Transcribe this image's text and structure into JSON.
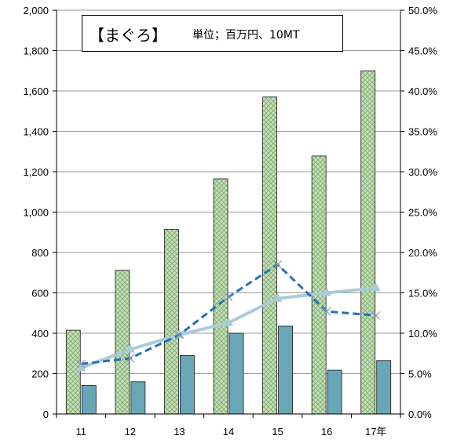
{
  "chart_data": {
    "type": "bar",
    "title": "【まぐろ】",
    "subtitle": "単位；百万円、10MT",
    "categories": [
      "11",
      "12",
      "13",
      "14",
      "15",
      "16",
      "17年"
    ],
    "y_left": {
      "ylim": [
        0,
        2000
      ],
      "ticks": [
        "0",
        "200",
        "400",
        "600",
        "800",
        "1,000",
        "1,200",
        "1,400",
        "1,600",
        "1,800",
        "2,000"
      ]
    },
    "y_right": {
      "ylim": [
        0,
        50
      ],
      "ticks": [
        "0.0%",
        "5.0%",
        "10.0%",
        "15.0%",
        "20.0%",
        "25.0%",
        "30.0%",
        "35.0%",
        "40.0%",
        "45.0%",
        "50.0%"
      ]
    },
    "series": [
      {
        "type": "bar",
        "axis": "left",
        "values": [
          415,
          712,
          915,
          1165,
          1570,
          1278,
          1700
        ],
        "color": "#a9c99a"
      },
      {
        "type": "bar",
        "axis": "left",
        "values": [
          142,
          160,
          290,
          400,
          435,
          217,
          265
        ],
        "color": "#69a7b8"
      },
      {
        "type": "line",
        "axis": "right",
        "style": "dashed",
        "marker": "x",
        "values": [
          6.2,
          6.9,
          9.8,
          14.5,
          18.5,
          12.7,
          12.2
        ],
        "color": "#2272b9"
      },
      {
        "type": "line",
        "axis": "right",
        "style": "solid",
        "marker": "triangle",
        "values": [
          5.7,
          8.0,
          9.8,
          11.3,
          14.3,
          15.0,
          15.6
        ],
        "color": "#a9cbd8"
      }
    ],
    "grid": true
  }
}
